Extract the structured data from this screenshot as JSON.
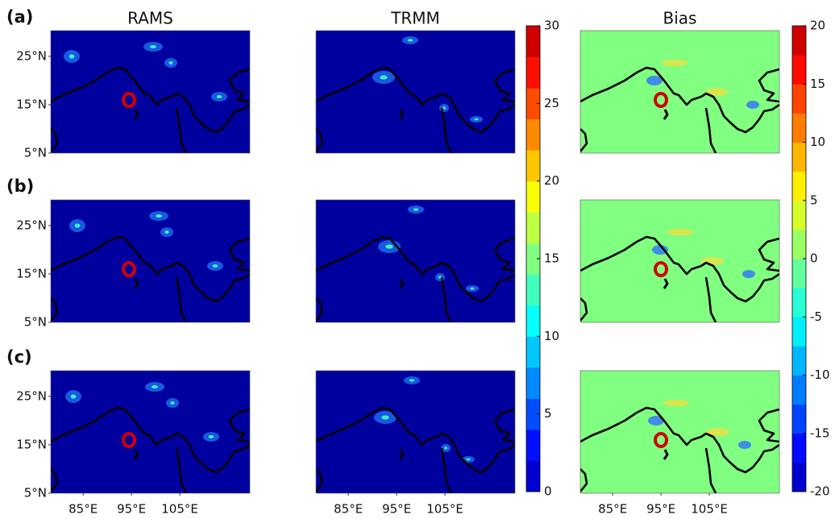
{
  "panels": [
    "(a)",
    "(b)",
    "(c)"
  ],
  "columns": [
    "RAMS",
    "TRMM",
    "Bias"
  ],
  "lat_range": [
    5,
    30.3
  ],
  "lon_range": [
    78.3,
    119.5
  ],
  "lat_ticks": [
    {
      "value": 5,
      "label": "5°N"
    },
    {
      "value": 15,
      "label": "15°N"
    },
    {
      "value": 25,
      "label": "25°N"
    }
  ],
  "lon_ticks": [
    {
      "value": 85,
      "label": "85°E"
    },
    {
      "value": 95,
      "label": "95°E"
    },
    {
      "value": 105,
      "label": "105°E"
    }
  ],
  "colorbars": [
    {
      "lim": [
        0,
        30
      ],
      "ticks": [
        0,
        5,
        10,
        15,
        20,
        25,
        30
      ]
    },
    {
      "lim": [
        -20,
        20
      ],
      "ticks": [
        -20,
        -15,
        -10,
        -5,
        0,
        5,
        10,
        15,
        20
      ]
    }
  ]
}
